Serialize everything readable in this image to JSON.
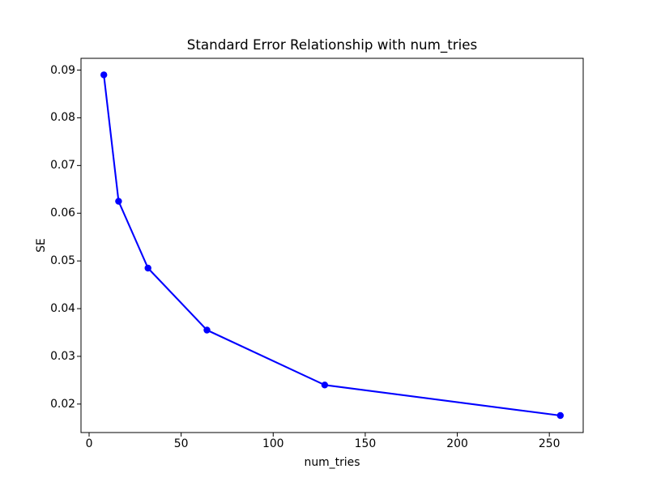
{
  "chart_data": {
    "type": "line",
    "title": "Standard Error Relationship with num_tries",
    "xlabel": "num_tries",
    "ylabel": "SE",
    "x": [
      8,
      16,
      32,
      64,
      128,
      256
    ],
    "y": [
      0.089,
      0.0625,
      0.0485,
      0.0355,
      0.024,
      0.0176
    ],
    "xticks": [
      0,
      50,
      100,
      150,
      200,
      250
    ],
    "yticks": [
      0.02,
      0.03,
      0.04,
      0.05,
      0.06,
      0.07,
      0.08,
      0.09
    ],
    "xlim": [
      -4.4,
      268.4
    ],
    "ylim": [
      0.01403,
      0.09247
    ],
    "line_color": "#0000ff",
    "marker": "o",
    "grid": false,
    "legend": null,
    "background_color": "#ffffff",
    "text_color": "#000000"
  }
}
